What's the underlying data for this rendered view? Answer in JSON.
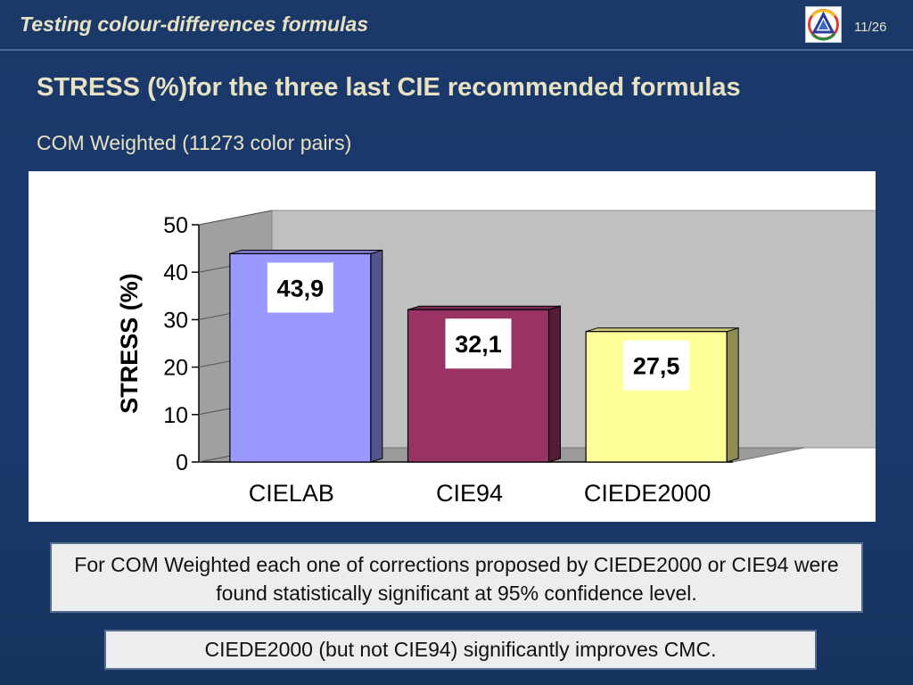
{
  "header": {
    "title": "Testing colour-differences formulas",
    "page": "11/26"
  },
  "slide": {
    "title": "STRESS (%)for the three last CIE recommended formulas",
    "subtitle": "COM Weighted (11273 color pairs)"
  },
  "chart_data": {
    "type": "bar",
    "categories": [
      "CIELAB",
      "CIE94",
      "CIEDE2000"
    ],
    "values": [
      43.9,
      32.1,
      27.5
    ],
    "data_labels": [
      "43,9",
      "32,1",
      "27,5"
    ],
    "colors": [
      "#9999ff",
      "#993366",
      "#ffff99"
    ],
    "ylabel": "STRESS (%)",
    "ylim": [
      0,
      50
    ],
    "yticks": [
      0,
      10,
      20,
      30,
      40,
      50
    ],
    "grid": false,
    "style": "3d-columns"
  },
  "notes": [
    "For COM Weighted each one of corrections proposed by CIEDE2000 or CIE94 were found statistically significant at 95% confidence level.",
    "CIEDE2000 (but not CIE94) significantly improves CMC."
  ],
  "colors": {
    "background": "#1a3868",
    "title_text": "#e8e2c4",
    "note_background": "#ecedef"
  },
  "logo": {
    "icon": "triangle-colour-logo"
  }
}
